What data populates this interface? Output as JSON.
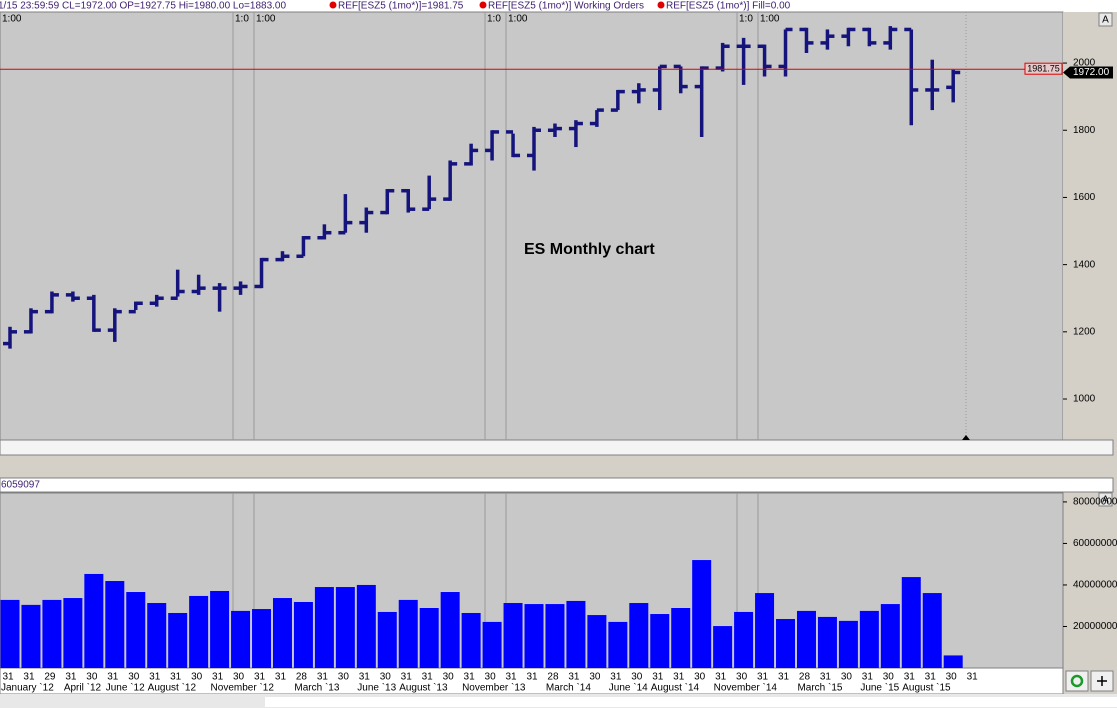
{
  "header": {
    "status": "1/15 23:59:59 CL=1972.00 OP=1927.75 Hi=1980.00 Lo=1883.00",
    "ref_price": "REF[ESZ5 (1mo*)]=1981.75",
    "working_orders": "REF[ESZ5 (1mo*)] Working Orders",
    "fill": "REF[ESZ5 (1mo*)] Fill=0.00"
  },
  "time_labels": [
    "1:00",
    "1:0",
    "1:00",
    "1:0",
    "1:00",
    "1:0",
    "1:00"
  ],
  "scale_button": "A",
  "chart_data": [
    {
      "type": "ohlc",
      "title": "ES Monthly chart",
      "categories": [
        "31",
        "31",
        "29",
        "31",
        "30",
        "31",
        "30",
        "31",
        "31",
        "30",
        "31",
        "30",
        "31",
        "31",
        "28",
        "31",
        "30",
        "31",
        "30",
        "31",
        "31",
        "30",
        "31",
        "30",
        "31",
        "31",
        "28",
        "31",
        "30",
        "31",
        "30",
        "31",
        "31",
        "30",
        "31",
        "30",
        "31",
        "31",
        "28",
        "31",
        "30",
        "31",
        "30",
        "31",
        "31",
        "30",
        "31"
      ],
      "month_labels": [
        null,
        "January `12",
        null,
        null,
        "April `12",
        null,
        "June `12",
        null,
        "August `12",
        null,
        null,
        "November `12",
        null,
        null,
        null,
        "March `13",
        null,
        null,
        "June `13",
        null,
        "August `13",
        null,
        null,
        "November `13",
        null,
        null,
        null,
        "March `14",
        null,
        null,
        "June `14",
        null,
        "August `14",
        null,
        null,
        "November `14",
        null,
        null,
        null,
        "March `15",
        null,
        null,
        "June `15",
        null,
        "August `15",
        null,
        null
      ],
      "open": [
        1165,
        1200,
        1260,
        1310,
        1300,
        1205,
        1260,
        1285,
        1300,
        1320,
        1330,
        1330,
        1335,
        1415,
        1425,
        1480,
        1495,
        1525,
        1555,
        1620,
        1565,
        1595,
        1700,
        1740,
        1795,
        1725,
        1800,
        1805,
        1820,
        1860,
        1915,
        1920,
        1990,
        1930,
        1985,
        2050,
        2050,
        1990,
        2100,
        2060,
        2080,
        2100,
        2060,
        2100,
        1920,
        1927.75,
        null
      ],
      "high": [
        1215,
        1270,
        1320,
        1320,
        1310,
        1270,
        1290,
        1310,
        1385,
        1370,
        1345,
        1350,
        1420,
        1440,
        1485,
        1520,
        1610,
        1570,
        1625,
        1625,
        1665,
        1710,
        1760,
        1800,
        1790,
        1810,
        1820,
        1830,
        1860,
        1920,
        1940,
        1990,
        1990,
        1990,
        2060,
        2075,
        2055,
        2100,
        2105,
        2100,
        2105,
        2105,
        2110,
        2100,
        2010,
        1980,
        null
      ],
      "low": [
        1150,
        1195,
        1255,
        1290,
        1200,
        1170,
        1265,
        1275,
        1305,
        1310,
        1260,
        1310,
        1330,
        1410,
        1425,
        1475,
        1495,
        1495,
        1550,
        1555,
        1565,
        1590,
        1695,
        1710,
        1720,
        1680,
        1780,
        1750,
        1810,
        1860,
        1880,
        1860,
        1910,
        1780,
        1975,
        1935,
        1960,
        1960,
        2030,
        2040,
        2050,
        2050,
        2040,
        1815,
        1860,
        1883,
        null
      ],
      "close": [
        1200,
        1260,
        1310,
        1300,
        1205,
        1260,
        1285,
        1300,
        1320,
        1330,
        1330,
        1335,
        1415,
        1425,
        1480,
        1495,
        1525,
        1555,
        1620,
        1565,
        1595,
        1700,
        1740,
        1795,
        1725,
        1800,
        1805,
        1820,
        1860,
        1915,
        1920,
        1990,
        1930,
        1985,
        2050,
        2050,
        1990,
        2100,
        2060,
        2080,
        2100,
        2060,
        2100,
        1920,
        1920,
        1972,
        null
      ],
      "color": "#14147c",
      "ylim": [
        878,
        2152
      ],
      "yticks": [
        1000,
        1200,
        1400,
        1600,
        1800,
        2000
      ],
      "reference_line": {
        "value": 1981.75,
        "label": "1981.75",
        "color": "#e00000"
      },
      "last_value_label": "1972.00"
    },
    {
      "type": "bar",
      "values": [
        32800000,
        30400000,
        32800000,
        33700000,
        45300000,
        41900000,
        36600000,
        31300000,
        26500000,
        34700000,
        37100000,
        27500000,
        28400000,
        33700000,
        31800000,
        39000000,
        39000000,
        40000000,
        27000000,
        32800000,
        28900000,
        36600000,
        26500000,
        22200000,
        31300000,
        30800000,
        30800000,
        32300000,
        25500000,
        22200000,
        31300000,
        26000000,
        28900000,
        52000000,
        20200000,
        27000000,
        36100000,
        23600000,
        27500000,
        24600000,
        22700000,
        27500000,
        30800000,
        43800000,
        36100000,
        6059097,
        null
      ],
      "color": "#0000ff",
      "ylim": [
        0,
        84300000
      ],
      "yticks": [
        20000000,
        40000000,
        60000000,
        80000000
      ]
    }
  ]
}
